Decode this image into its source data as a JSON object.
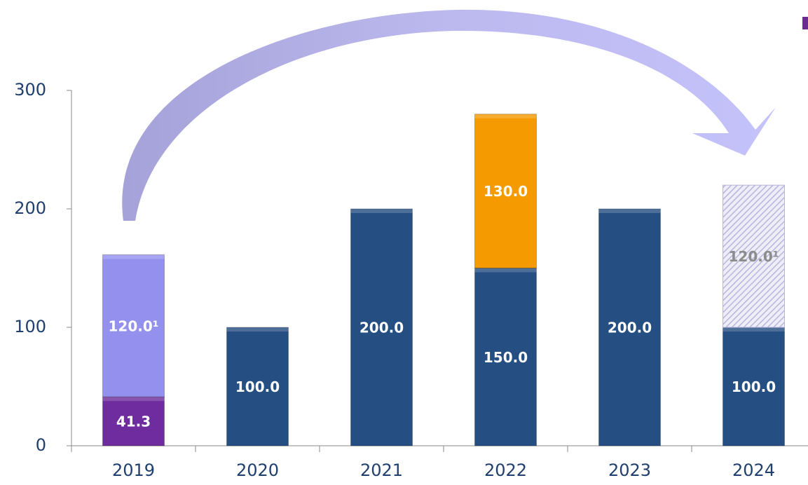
{
  "chart_data": {
    "type": "stacked-bar",
    "categories": [
      "2019",
      "2020",
      "2021",
      "2022",
      "2023",
      "2024"
    ],
    "series": [
      {
        "color": "#6f2c9e",
        "values": [
          41.3,
          null,
          null,
          null,
          null,
          null
        ],
        "value_labels": [
          "41.3",
          null,
          null,
          null,
          null,
          null
        ]
      },
      {
        "color": "#254f82",
        "values": [
          null,
          100,
          200,
          150,
          200,
          100
        ],
        "value_labels": [
          null,
          "100.0",
          "200.0",
          "150.0",
          "200.0",
          "100.0"
        ]
      },
      {
        "color": "#9490ee",
        "values": [
          120,
          null,
          null,
          null,
          null,
          null
        ],
        "value_labels": [
          "120.0¹",
          null,
          null,
          null,
          null,
          null
        ]
      },
      {
        "color": "#f59a00",
        "values": [
          null,
          null,
          null,
          130,
          null,
          null
        ],
        "value_labels": [
          null,
          null,
          null,
          "130.0",
          null,
          null
        ]
      },
      {
        "color": "#b8b4dc",
        "pattern": "hatch",
        "values": [
          null,
          null,
          null,
          null,
          null,
          120
        ],
        "value_labels": [
          null,
          null,
          null,
          null,
          null,
          "120.0¹"
        ]
      }
    ],
    "ylim": [
      0,
      300
    ],
    "yticks": [
      0,
      100,
      200,
      300
    ]
  }
}
